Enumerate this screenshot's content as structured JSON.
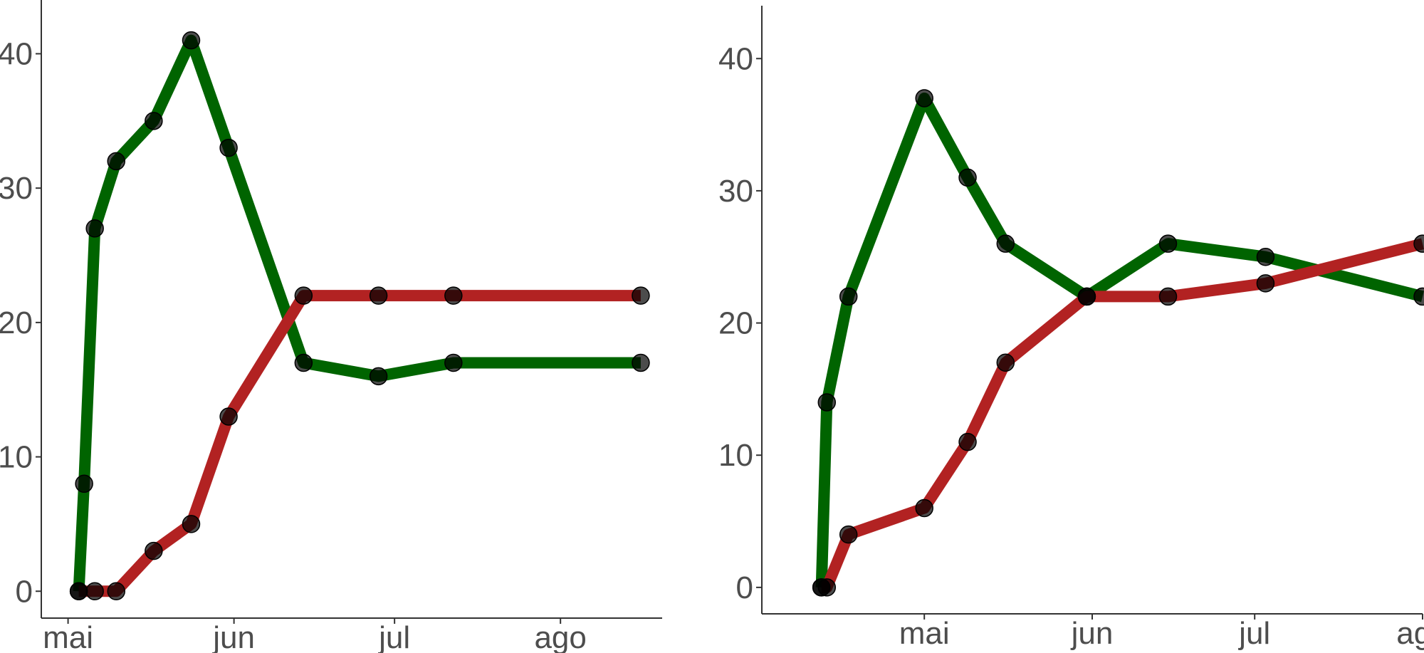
{
  "chart_data": [
    {
      "type": "line",
      "title": "",
      "xlabel": "",
      "ylabel": "",
      "xlim": [
        "2020-04-26",
        "2020-08-20"
      ],
      "ylim": [
        -2,
        44
      ],
      "x_ticks": [
        {
          "date": "2020-05-01",
          "label": "mai"
        },
        {
          "date": "2020-06-01",
          "label": "jun"
        },
        {
          "date": "2020-07-01",
          "label": "jul"
        },
        {
          "date": "2020-08-01",
          "label": "ago"
        }
      ],
      "y_ticks": [
        0,
        10,
        20,
        30,
        40
      ],
      "grid": false,
      "series": [
        {
          "color": "#006400",
          "points": [
            {
              "x": "2020-05-03",
              "y": 0
            },
            {
              "x": "2020-05-04",
              "y": 8
            },
            {
              "x": "2020-05-06",
              "y": 27
            },
            {
              "x": "2020-05-10",
              "y": 32
            },
            {
              "x": "2020-05-17",
              "y": 35
            },
            {
              "x": "2020-05-24",
              "y": 41
            },
            {
              "x": "2020-05-31",
              "y": 33
            },
            {
              "x": "2020-06-14",
              "y": 17
            },
            {
              "x": "2020-06-28",
              "y": 16
            },
            {
              "x": "2020-07-12",
              "y": 17
            },
            {
              "x": "2020-08-16",
              "y": 17
            }
          ]
        },
        {
          "color": "#b22222",
          "points": [
            {
              "x": "2020-05-03",
              "y": 0
            },
            {
              "x": "2020-05-06",
              "y": 0
            },
            {
              "x": "2020-05-10",
              "y": 0
            },
            {
              "x": "2020-05-17",
              "y": 3
            },
            {
              "x": "2020-05-24",
              "y": 5
            },
            {
              "x": "2020-05-31",
              "y": 13
            },
            {
              "x": "2020-06-14",
              "y": 22
            },
            {
              "x": "2020-06-28",
              "y": 22
            },
            {
              "x": "2020-07-12",
              "y": 22
            },
            {
              "x": "2020-08-16",
              "y": 22
            }
          ]
        }
      ]
    },
    {
      "type": "line",
      "title": "",
      "xlabel": "",
      "ylabel": "",
      "xlim": [
        "2020-04-01",
        "2020-08-01"
      ],
      "ylim": [
        -2,
        44
      ],
      "x_ticks": [
        {
          "date": "2020-05-01",
          "label": "mai"
        },
        {
          "date": "2020-06-01",
          "label": "jun"
        },
        {
          "date": "2020-07-01",
          "label": "jul"
        },
        {
          "date": "2020-08-01",
          "label": "ago"
        }
      ],
      "y_ticks": [
        0,
        10,
        20,
        30,
        40
      ],
      "grid": false,
      "series": [
        {
          "color": "#006400",
          "points": [
            {
              "x": "2020-04-12",
              "y": 0
            },
            {
              "x": "2020-04-13",
              "y": 14
            },
            {
              "x": "2020-04-17",
              "y": 22
            },
            {
              "x": "2020-05-01",
              "y": 37
            },
            {
              "x": "2020-05-09",
              "y": 31
            },
            {
              "x": "2020-05-16",
              "y": 26
            },
            {
              "x": "2020-05-31",
              "y": 22
            },
            {
              "x": "2020-06-15",
              "y": 26
            },
            {
              "x": "2020-07-03",
              "y": 25
            },
            {
              "x": "2020-08-01",
              "y": 22
            }
          ]
        },
        {
          "color": "#b22222",
          "points": [
            {
              "x": "2020-04-12",
              "y": 0
            },
            {
              "x": "2020-04-13",
              "y": 0
            },
            {
              "x": "2020-04-17",
              "y": 4
            },
            {
              "x": "2020-05-01",
              "y": 6
            },
            {
              "x": "2020-05-09",
              "y": 11
            },
            {
              "x": "2020-05-16",
              "y": 17
            },
            {
              "x": "2020-05-31",
              "y": 22
            },
            {
              "x": "2020-06-15",
              "y": 22
            },
            {
              "x": "2020-07-03",
              "y": 23
            },
            {
              "x": "2020-08-01",
              "y": 26
            }
          ]
        }
      ]
    }
  ]
}
